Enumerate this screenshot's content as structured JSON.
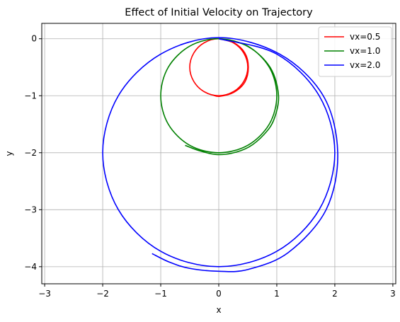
{
  "chart_data": {
    "type": "line",
    "title": "Effect of Initial Velocity on Trajectory",
    "xlabel": "x",
    "ylabel": "y",
    "xlim": [
      -3.05,
      3.05
    ],
    "ylim": [
      -4.3,
      0.27
    ],
    "xticks": [
      -3,
      -2,
      -1,
      0,
      1,
      2,
      3
    ],
    "yticks": [
      0,
      -1,
      -2,
      -3,
      -4
    ],
    "grid": true,
    "legend_position": "top-right",
    "series": [
      {
        "name": "vx=0.5",
        "color": "#ff0000",
        "points": [
          [
            0,
            0
          ],
          [
            0.25,
            -0.07
          ],
          [
            0.43,
            -0.25
          ],
          [
            0.5,
            -0.5
          ],
          [
            0.43,
            -0.75
          ],
          [
            0.25,
            -0.93
          ],
          [
            0,
            -1.0
          ],
          [
            -0.25,
            -0.93
          ],
          [
            -0.43,
            -0.75
          ],
          [
            -0.5,
            -0.5
          ],
          [
            -0.43,
            -0.25
          ],
          [
            -0.25,
            -0.07
          ],
          [
            0,
            0
          ],
          [
            0.26,
            -0.07
          ],
          [
            0.45,
            -0.25
          ],
          [
            0.51,
            -0.5
          ],
          [
            0.45,
            -0.76
          ],
          [
            0.26,
            -0.94
          ],
          [
            0.02,
            -1.01
          ],
          [
            -0.1,
            -0.99
          ]
        ]
      },
      {
        "name": "vx=1.0",
        "color": "#008000",
        "points": [
          [
            0,
            0
          ],
          [
            0.5,
            -0.13
          ],
          [
            0.87,
            -0.5
          ],
          [
            1.0,
            -1.0
          ],
          [
            0.87,
            -1.5
          ],
          [
            0.5,
            -1.87
          ],
          [
            0,
            -2.0
          ],
          [
            -0.5,
            -1.87
          ],
          [
            -0.87,
            -1.5
          ],
          [
            -1.0,
            -1.0
          ],
          [
            -0.87,
            -0.5
          ],
          [
            -0.5,
            -0.13
          ],
          [
            0,
            0
          ],
          [
            0.51,
            -0.14
          ],
          [
            0.89,
            -0.51
          ],
          [
            1.03,
            -1.0
          ],
          [
            0.95,
            -1.42
          ],
          [
            0.78,
            -1.68
          ],
          [
            0.52,
            -1.9
          ],
          [
            0.22,
            -2.01
          ],
          [
            -0.06,
            -2.03
          ],
          [
            -0.35,
            -1.96
          ],
          [
            -0.58,
            -1.87
          ]
        ]
      },
      {
        "name": "vx=2.0",
        "color": "#0000ff",
        "points": [
          [
            0,
            0
          ],
          [
            1.0,
            -0.27
          ],
          [
            1.73,
            -1.0
          ],
          [
            2.0,
            -2.0
          ],
          [
            1.73,
            -3.0
          ],
          [
            1.0,
            -3.73
          ],
          [
            0,
            -4.0
          ],
          [
            -1.0,
            -3.73
          ],
          [
            -1.73,
            -3.0
          ],
          [
            -2.0,
            -2.0
          ],
          [
            -1.73,
            -1.0
          ],
          [
            -1.0,
            -0.27
          ],
          [
            0,
            0.02
          ],
          [
            1.05,
            -0.27
          ],
          [
            1.8,
            -1.0
          ],
          [
            2.05,
            -2.0
          ],
          [
            1.85,
            -3.0
          ],
          [
            1.2,
            -3.75
          ],
          [
            0.5,
            -4.05
          ],
          [
            0,
            -4.08
          ],
          [
            -0.5,
            -4.03
          ],
          [
            -0.85,
            -3.92
          ],
          [
            -1.15,
            -3.77
          ]
        ]
      }
    ]
  }
}
